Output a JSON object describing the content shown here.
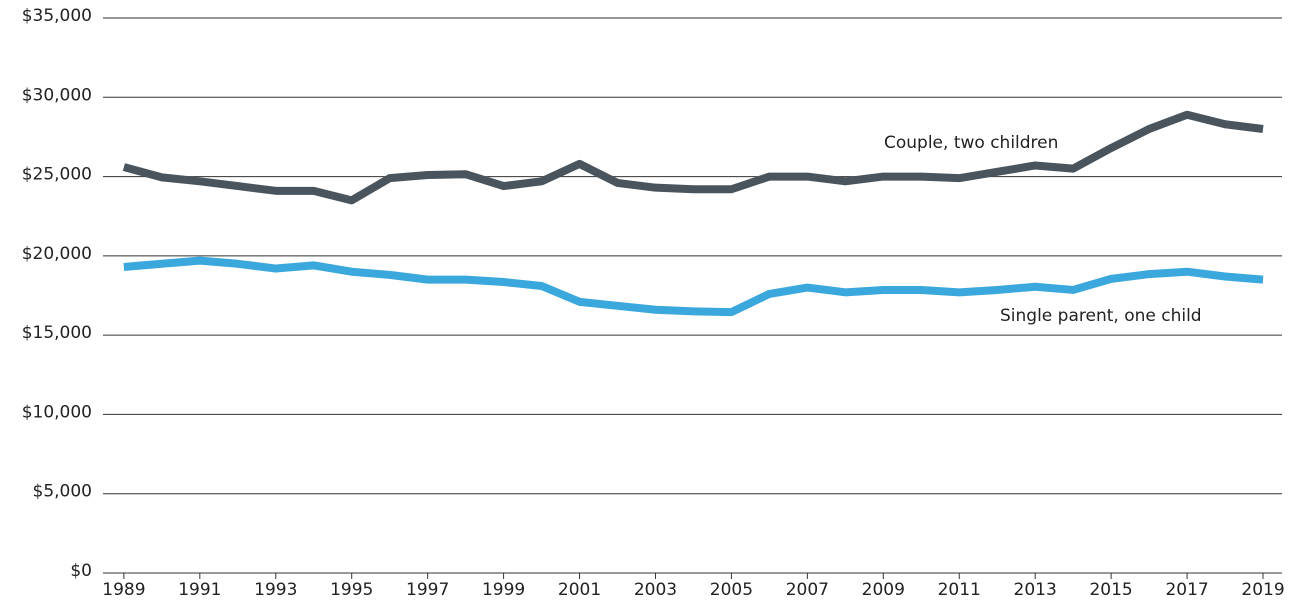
{
  "chart_data": {
    "type": "line",
    "x": [
      1989,
      1990,
      1991,
      1992,
      1993,
      1994,
      1995,
      1996,
      1997,
      1998,
      1999,
      2000,
      2001,
      2002,
      2003,
      2004,
      2005,
      2006,
      2007,
      2008,
      2009,
      2010,
      2011,
      2012,
      2013,
      2014,
      2015,
      2016,
      2017,
      2018,
      2019
    ],
    "series": [
      {
        "name": "Couple, two children",
        "color": "#4a545c",
        "values": [
          25600,
          24950,
          24700,
          24400,
          24100,
          24100,
          23500,
          24900,
          25100,
          25150,
          24400,
          24700,
          25800,
          24600,
          24300,
          24200,
          24200,
          25000,
          25000,
          24700,
          25000,
          25000,
          24900,
          25300,
          25700,
          25500,
          26800,
          28000,
          28900,
          28300,
          28000
        ]
      },
      {
        "name": "Single parent, one child",
        "color": "#3aa8dc",
        "values": [
          19300,
          19500,
          19700,
          19500,
          19200,
          19400,
          19000,
          18800,
          18500,
          18500,
          18350,
          18100,
          17100,
          16850,
          16600,
          16500,
          16450,
          17600,
          18000,
          17700,
          17850,
          17850,
          17700,
          17850,
          18050,
          17850,
          18550,
          18850,
          19000,
          18700,
          18500
        ]
      }
    ],
    "xlim": [
      1988.45,
      2019.5
    ],
    "xticks": [
      1989,
      1991,
      1993,
      1995,
      1997,
      1999,
      2001,
      2003,
      2005,
      2007,
      2009,
      2011,
      2013,
      2015,
      2017,
      2019
    ],
    "ylim": [
      0,
      35000
    ],
    "yticks": [
      {
        "value": 0,
        "label": "$0"
      },
      {
        "value": 5000,
        "label": "$5,000"
      },
      {
        "value": 10000,
        "label": "$10,000"
      },
      {
        "value": 15000,
        "label": "$15,000"
      },
      {
        "value": 20000,
        "label": "$20,000"
      },
      {
        "value": 25000,
        "label": "$25,000"
      },
      {
        "value": 30000,
        "label": "$30,000"
      },
      {
        "value": 35000,
        "label": "$35,000"
      }
    ],
    "grid": true
  }
}
